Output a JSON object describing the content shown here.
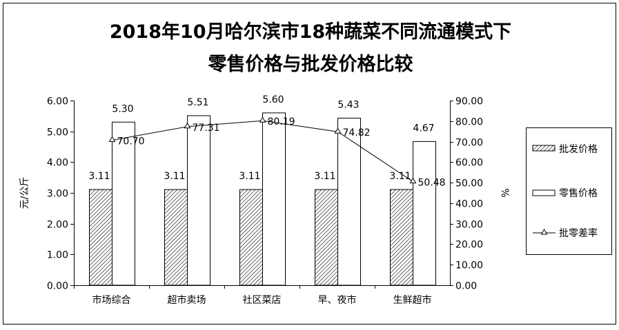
{
  "chart_data": {
    "type": "bar",
    "title_lines": [
      "2018年10月哈尔滨市18种蔬菜不同流通模式下",
      "零售价格与批发价格比较"
    ],
    "categories": [
      "市场综合",
      "超市卖场",
      "社区菜店",
      "早、夜市",
      "生鲜超市"
    ],
    "series": [
      {
        "name": "批发价格",
        "type": "bar",
        "axis": "left",
        "pattern": "hatched",
        "values": [
          3.11,
          3.11,
          3.11,
          3.11,
          3.11
        ],
        "labels": [
          "3.11",
          "3.11",
          "3.11",
          "3.11",
          "3.11"
        ]
      },
      {
        "name": "零售价格",
        "type": "bar",
        "axis": "left",
        "pattern": "hollow",
        "values": [
          5.3,
          5.51,
          5.6,
          5.43,
          4.67
        ],
        "labels": [
          "5.30",
          "5.51",
          "5.60",
          "5.43",
          "4.67"
        ]
      },
      {
        "name": "批零差率",
        "type": "line",
        "axis": "right",
        "marker": "triangle",
        "values": [
          70.7,
          77.31,
          80.19,
          74.82,
          50.48
        ],
        "labels": [
          "70.70",
          "77.31",
          "80.19",
          "74.82",
          "50.48"
        ]
      }
    ],
    "ylabel": "元/公斤",
    "ylabel_right": "%",
    "ylim": [
      0,
      6
    ],
    "ylim_right": [
      0,
      90
    ],
    "yticks": [
      "0.00",
      "1.00",
      "2.00",
      "3.00",
      "4.00",
      "5.00",
      "6.00"
    ],
    "yticks_right": [
      "0.00",
      "10.00",
      "20.00",
      "30.00",
      "40.00",
      "50.00",
      "60.00",
      "70.00",
      "80.00",
      "90.00"
    ],
    "grid": false,
    "legend_position": "right"
  }
}
